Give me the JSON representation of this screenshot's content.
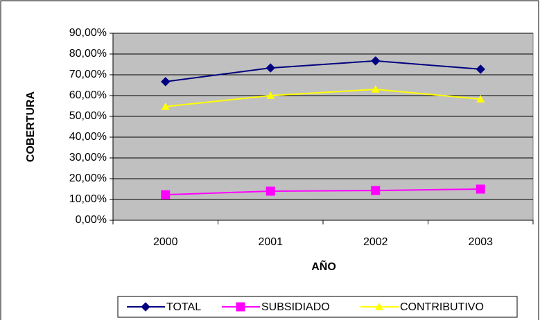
{
  "chart_data": {
    "type": "line",
    "xlabel": "AÑO",
    "ylabel": "COBERTURA",
    "categories": [
      "2000",
      "2001",
      "2002",
      "2003"
    ],
    "series": [
      {
        "name": "TOTAL",
        "color": "#000080",
        "marker": "diamond",
        "values": [
          66.7,
          73.3,
          76.7,
          72.7
        ]
      },
      {
        "name": "SUBSIDIADO",
        "color": "#ff00ff",
        "marker": "square",
        "values": [
          12.3,
          14,
          14.3,
          15
        ]
      },
      {
        "name": "CONTRIBUTIVO",
        "color": "#ffff00",
        "marker": "triangle",
        "values": [
          54.7,
          60,
          63,
          58.3
        ]
      }
    ],
    "ylim": [
      0,
      90
    ],
    "yticks": [
      {
        "value": 0,
        "label": "0,00%"
      },
      {
        "value": 10,
        "label": "10,00%"
      },
      {
        "value": 20,
        "label": "20,00%"
      },
      {
        "value": 30,
        "label": "30,00%"
      },
      {
        "value": 40,
        "label": "40,00%"
      },
      {
        "value": 50,
        "label": "50,00%"
      },
      {
        "value": 60,
        "label": "60,00%"
      },
      {
        "value": 70,
        "label": "70,00%"
      },
      {
        "value": 80,
        "label": "80,00%"
      },
      {
        "value": 90,
        "label": "90,00%"
      }
    ],
    "grid": true,
    "legend": "bottom"
  }
}
